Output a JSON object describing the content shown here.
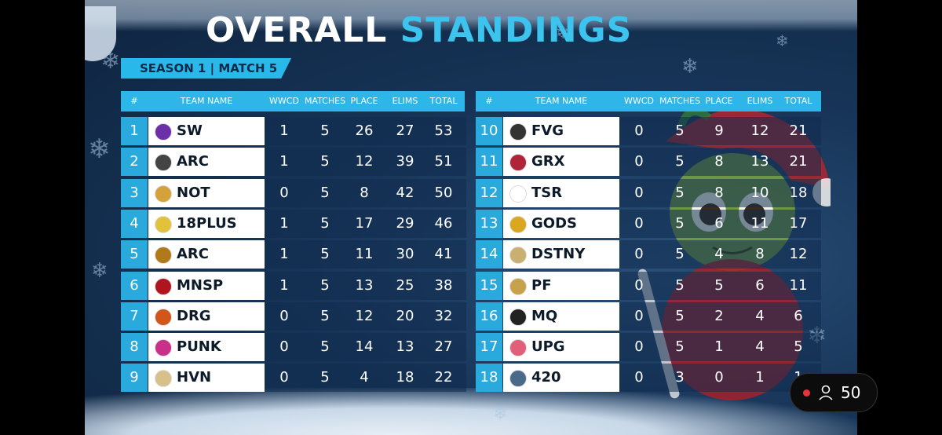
{
  "title": {
    "white": "OVERALL",
    "blue": "STANDINGS"
  },
  "subtitle": "SEASON 1 | MATCH 5",
  "columns": {
    "rank": "#",
    "team": "TEAM NAME",
    "wwcd": "WWCD",
    "matches": "MATCHES",
    "place": "PLACE",
    "elims": "ELIMS",
    "total": "TOTAL"
  },
  "left_table": [
    {
      "rank": "1",
      "team": "SW",
      "wwcd": "1",
      "matches": "5",
      "place": "26",
      "elims": "27",
      "total": "53",
      "logo_color": "#6b2fa8"
    },
    {
      "rank": "2",
      "team": "ARC",
      "wwcd": "1",
      "matches": "5",
      "place": "12",
      "elims": "39",
      "total": "51",
      "logo_color": "#444444"
    },
    {
      "rank": "3",
      "team": "NOT",
      "wwcd": "0",
      "matches": "5",
      "place": "8",
      "elims": "42",
      "total": "50",
      "logo_color": "#d4a23a"
    },
    {
      "rank": "4",
      "team": "18PLUS",
      "wwcd": "1",
      "matches": "5",
      "place": "17",
      "elims": "29",
      "total": "46",
      "logo_color": "#e2c23a"
    },
    {
      "rank": "5",
      "team": "ARC",
      "wwcd": "1",
      "matches": "5",
      "place": "11",
      "elims": "30",
      "total": "41",
      "logo_color": "#b07a1a"
    },
    {
      "rank": "6",
      "team": "MNSP",
      "wwcd": "1",
      "matches": "5",
      "place": "13",
      "elims": "25",
      "total": "38",
      "logo_color": "#b0141e"
    },
    {
      "rank": "7",
      "team": "DRG",
      "wwcd": "0",
      "matches": "5",
      "place": "12",
      "elims": "20",
      "total": "32",
      "logo_color": "#d2551a"
    },
    {
      "rank": "8",
      "team": "PUNK",
      "wwcd": "0",
      "matches": "5",
      "place": "14",
      "elims": "13",
      "total": "27",
      "logo_color": "#c9308a"
    },
    {
      "rank": "9",
      "team": "HVN",
      "wwcd": "0",
      "matches": "5",
      "place": "4",
      "elims": "18",
      "total": "22",
      "logo_color": "#d8c08a"
    }
  ],
  "right_table": [
    {
      "rank": "10",
      "team": "FVG",
      "wwcd": "0",
      "matches": "5",
      "place": "9",
      "elims": "12",
      "total": "21",
      "logo_color": "#333333"
    },
    {
      "rank": "11",
      "team": "GRX",
      "wwcd": "0",
      "matches": "5",
      "place": "8",
      "elims": "13",
      "total": "21",
      "logo_color": "#b0243a"
    },
    {
      "rank": "12",
      "team": "TSR",
      "wwcd": "0",
      "matches": "5",
      "place": "8",
      "elims": "10",
      "total": "18",
      "logo_color": "#ffffff"
    },
    {
      "rank": "13",
      "team": "GODS",
      "wwcd": "0",
      "matches": "5",
      "place": "6",
      "elims": "11",
      "total": "17",
      "logo_color": "#d9a81e"
    },
    {
      "rank": "14",
      "team": "DSTNY",
      "wwcd": "0",
      "matches": "5",
      "place": "4",
      "elims": "8",
      "total": "12",
      "logo_color": "#c9b070"
    },
    {
      "rank": "15",
      "team": "PF",
      "wwcd": "0",
      "matches": "5",
      "place": "5",
      "elims": "6",
      "total": "11",
      "logo_color": "#c8a24a"
    },
    {
      "rank": "16",
      "team": "MQ",
      "wwcd": "0",
      "matches": "5",
      "place": "2",
      "elims": "4",
      "total": "6",
      "logo_color": "#222222"
    },
    {
      "rank": "17",
      "team": "UPG",
      "wwcd": "0",
      "matches": "5",
      "place": "1",
      "elims": "4",
      "total": "5",
      "logo_color": "#e0607a"
    },
    {
      "rank": "18",
      "team": "420",
      "wwcd": "0",
      "matches": "3",
      "place": "0",
      "elims": "1",
      "total": "1",
      "logo_color": "#4a6a8a"
    }
  ],
  "live_badge": {
    "viewer_count": "50",
    "icons": [
      "live-dot-icon",
      "person-icon"
    ],
    "dot_color": "#e5333a"
  },
  "colors": {
    "accent": "#2fb6e8",
    "title_blue": "#3cc3ee",
    "background": "#173558"
  }
}
